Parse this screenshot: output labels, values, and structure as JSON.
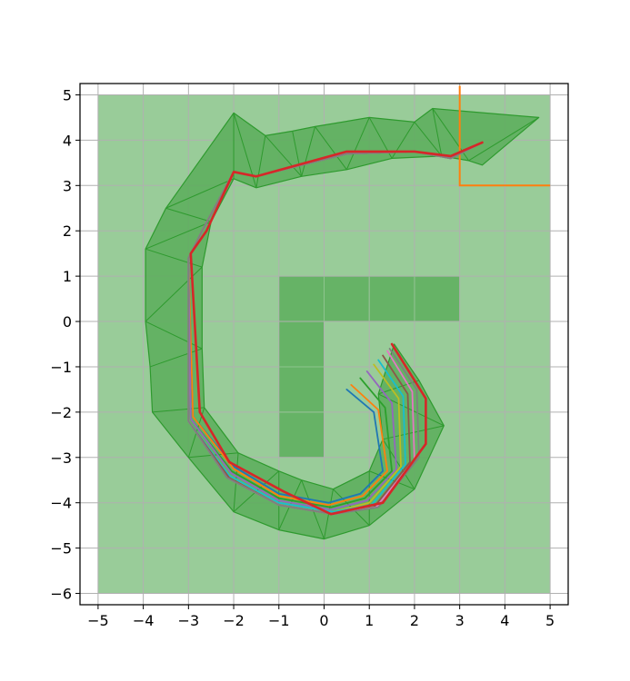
{
  "chart_data": {
    "type": "line",
    "title": "",
    "xlabel": "",
    "ylabel": "",
    "xlim": [
      -5.4,
      5.4
    ],
    "ylim": [
      -6.25,
      5.25
    ],
    "grid": true,
    "x_ticks": [
      -5,
      -4,
      -3,
      -2,
      -1,
      0,
      1,
      2,
      3,
      4,
      5
    ],
    "y_ticks": [
      5,
      4,
      3,
      2,
      1,
      0,
      -1,
      -2,
      -3,
      -4,
      -5,
      -6
    ],
    "x_tick_labels": [
      "−5",
      "−4",
      "−3",
      "−2",
      "−1",
      "0",
      "1",
      "2",
      "3",
      "4",
      "5"
    ],
    "y_tick_labels": [
      "5",
      "4",
      "3",
      "2",
      "1",
      "0",
      "−1",
      "−2",
      "−3",
      "−4",
      "−5",
      "−6"
    ],
    "colors": {
      "background_region": "#99cc99",
      "obstacle": "#66b366",
      "mesh_fill": "#5aad5a",
      "mesh_edge": "#2e9a2e",
      "goal_lines": "#ff7f0e",
      "grid": "#b0b0b0"
    },
    "background_region": {
      "x": [
        -5,
        5
      ],
      "y": [
        -6,
        5
      ]
    },
    "obstacles": [
      {
        "x": [
          -1,
          3
        ],
        "y": [
          0,
          1
        ]
      },
      {
        "x": [
          -1,
          0
        ],
        "y": [
          -3,
          0
        ]
      }
    ],
    "goal_lines": [
      [
        [
          3,
          5.2
        ],
        [
          3,
          3
        ],
        [
          5,
          3
        ]
      ]
    ],
    "mesh_polygon": [
      [
        -2.0,
        4.6
      ],
      [
        -1.3,
        4.1
      ],
      [
        -0.7,
        4.2
      ],
      [
        -0.2,
        4.3
      ],
      [
        1.0,
        4.5
      ],
      [
        2.0,
        4.4
      ],
      [
        2.4,
        4.7
      ],
      [
        4.75,
        4.5
      ],
      [
        3.5,
        3.45
      ],
      [
        3.2,
        3.55
      ],
      [
        2.6,
        3.65
      ],
      [
        1.5,
        3.6
      ],
      [
        0.5,
        3.35
      ],
      [
        -0.5,
        3.2
      ],
      [
        -1.5,
        2.95
      ],
      [
        -2.0,
        3.15
      ],
      [
        -2.5,
        2.2
      ],
      [
        -2.7,
        1.2
      ],
      [
        -2.7,
        -0.6
      ],
      [
        -2.65,
        -1.9
      ],
      [
        -1.9,
        -2.9
      ],
      [
        -1.0,
        -3.3
      ],
      [
        -0.5,
        -3.5
      ],
      [
        0.2,
        -3.7
      ],
      [
        1.0,
        -3.3
      ],
      [
        1.3,
        -2.6
      ],
      [
        1.2,
        -1.6
      ],
      [
        1.55,
        -0.5
      ],
      [
        2.1,
        -1.3
      ],
      [
        2.65,
        -2.3
      ],
      [
        2.0,
        -3.7
      ],
      [
        1.0,
        -4.5
      ],
      [
        0.0,
        -4.8
      ],
      [
        -1.0,
        -4.6
      ],
      [
        -2.0,
        -4.2
      ],
      [
        -3.0,
        -3.0
      ],
      [
        -3.8,
        -2.0
      ],
      [
        -3.85,
        -1.0
      ],
      [
        -3.95,
        0.0
      ],
      [
        -3.95,
        1.6
      ],
      [
        -3.5,
        2.5
      ]
    ],
    "mesh_edges": [
      [
        [
          -2.0,
          4.6
        ],
        [
          -2.0,
          3.15
        ]
      ],
      [
        [
          -2.0,
          4.6
        ],
        [
          -1.5,
          2.95
        ]
      ],
      [
        [
          -1.3,
          4.1
        ],
        [
          -1.5,
          2.95
        ]
      ],
      [
        [
          -1.3,
          4.1
        ],
        [
          -0.5,
          3.2
        ]
      ],
      [
        [
          -0.7,
          4.2
        ],
        [
          -0.5,
          3.2
        ]
      ],
      [
        [
          -0.2,
          4.3
        ],
        [
          -0.5,
          3.2
        ]
      ],
      [
        [
          -0.2,
          4.3
        ],
        [
          0.5,
          3.35
        ]
      ],
      [
        [
          1.0,
          4.5
        ],
        [
          0.5,
          3.35
        ]
      ],
      [
        [
          1.0,
          4.5
        ],
        [
          1.5,
          3.6
        ]
      ],
      [
        [
          2.0,
          4.4
        ],
        [
          1.5,
          3.6
        ]
      ],
      [
        [
          2.0,
          4.4
        ],
        [
          2.6,
          3.65
        ]
      ],
      [
        [
          2.4,
          4.7
        ],
        [
          2.6,
          3.65
        ]
      ],
      [
        [
          2.4,
          4.7
        ],
        [
          3.2,
          3.55
        ]
      ],
      [
        [
          4.75,
          4.5
        ],
        [
          3.2,
          3.55
        ]
      ],
      [
        [
          -3.5,
          2.5
        ],
        [
          -2.5,
          2.2
        ]
      ],
      [
        [
          -3.5,
          2.5
        ],
        [
          -2.0,
          3.15
        ]
      ],
      [
        [
          -3.95,
          1.6
        ],
        [
          -2.5,
          2.2
        ]
      ],
      [
        [
          -3.95,
          1.6
        ],
        [
          -2.7,
          1.2
        ]
      ],
      [
        [
          -3.95,
          0.0
        ],
        [
          -2.7,
          1.2
        ]
      ],
      [
        [
          -3.95,
          0.0
        ],
        [
          -2.7,
          -0.6
        ]
      ],
      [
        [
          -3.85,
          -1.0
        ],
        [
          -2.7,
          -0.6
        ]
      ],
      [
        [
          -3.8,
          -2.0
        ],
        [
          -2.65,
          -1.9
        ]
      ],
      [
        [
          -3.0,
          -3.0
        ],
        [
          -2.65,
          -1.9
        ]
      ],
      [
        [
          -3.0,
          -3.0
        ],
        [
          -1.9,
          -2.9
        ]
      ],
      [
        [
          -2.0,
          -4.2
        ],
        [
          -1.9,
          -2.9
        ]
      ],
      [
        [
          -2.0,
          -4.2
        ],
        [
          -1.0,
          -3.3
        ]
      ],
      [
        [
          -1.0,
          -4.6
        ],
        [
          -1.0,
          -3.3
        ]
      ],
      [
        [
          -1.0,
          -4.6
        ],
        [
          -0.5,
          -3.5
        ]
      ],
      [
        [
          0.0,
          -4.8
        ],
        [
          -0.5,
          -3.5
        ]
      ],
      [
        [
          0.0,
          -4.8
        ],
        [
          0.2,
          -3.7
        ]
      ],
      [
        [
          1.0,
          -4.5
        ],
        [
          0.2,
          -3.7
        ]
      ],
      [
        [
          1.0,
          -4.5
        ],
        [
          1.0,
          -3.3
        ]
      ],
      [
        [
          2.0,
          -3.7
        ],
        [
          1.0,
          -3.3
        ]
      ],
      [
        [
          2.0,
          -3.7
        ],
        [
          1.3,
          -2.6
        ]
      ],
      [
        [
          2.65,
          -2.3
        ],
        [
          1.3,
          -2.6
        ]
      ],
      [
        [
          2.65,
          -2.3
        ],
        [
          1.2,
          -1.6
        ]
      ],
      [
        [
          2.1,
          -1.3
        ],
        [
          1.2,
          -1.6
        ]
      ]
    ],
    "series": [
      {
        "color": "#1f77b4",
        "points": [
          [
            0.5,
            -1.5
          ],
          [
            1.1,
            -2.0
          ],
          [
            1.3,
            -3.3
          ],
          [
            0.8,
            -3.8
          ],
          [
            0.1,
            -4.0
          ],
          [
            -1.0,
            -3.8
          ],
          [
            -2.0,
            -3.2
          ],
          [
            -2.9,
            -2.1
          ],
          [
            -3.0,
            1.4
          ],
          [
            -2.7,
            2.0
          ],
          [
            -2.0,
            3.3
          ],
          [
            -1.5,
            3.2
          ],
          [
            0.5,
            3.7
          ],
          [
            2.0,
            3.75
          ],
          [
            2.8,
            3.6
          ],
          [
            3.5,
            3.95
          ]
        ]
      },
      {
        "color": "#ff7f0e",
        "points": [
          [
            0.6,
            -1.4
          ],
          [
            1.2,
            -1.95
          ],
          [
            1.4,
            -3.3
          ],
          [
            0.85,
            -3.85
          ],
          [
            0.1,
            -4.05
          ],
          [
            -1.0,
            -3.85
          ],
          [
            -2.0,
            -3.25
          ],
          [
            -2.9,
            -2.1
          ],
          [
            -3.0,
            1.4
          ],
          [
            -2.7,
            2.0
          ],
          [
            -2.0,
            3.3
          ],
          [
            -1.5,
            3.2
          ],
          [
            0.5,
            3.7
          ],
          [
            2.0,
            3.75
          ],
          [
            2.8,
            3.6
          ],
          [
            3.5,
            3.95
          ]
        ]
      },
      {
        "color": "#2ca02c",
        "points": [
          [
            0.8,
            -1.25
          ],
          [
            1.35,
            -1.9
          ],
          [
            1.5,
            -3.3
          ],
          [
            0.9,
            -3.9
          ],
          [
            0.15,
            -4.1
          ],
          [
            -1.0,
            -3.9
          ],
          [
            -2.05,
            -3.3
          ],
          [
            -2.95,
            -2.15
          ],
          [
            -3.0,
            1.4
          ],
          [
            -2.7,
            2.0
          ],
          [
            -2.0,
            3.3
          ],
          [
            -1.5,
            3.2
          ],
          [
            0.5,
            3.7
          ],
          [
            2.0,
            3.75
          ],
          [
            2.8,
            3.6
          ],
          [
            3.5,
            3.95
          ]
        ]
      },
      {
        "color": "#9467bd",
        "points": [
          [
            0.95,
            -1.1
          ],
          [
            1.5,
            -1.8
          ],
          [
            1.6,
            -3.25
          ],
          [
            0.95,
            -3.95
          ],
          [
            0.15,
            -4.15
          ],
          [
            -1.0,
            -3.95
          ],
          [
            -2.05,
            -3.35
          ],
          [
            -2.95,
            -2.15
          ],
          [
            -3.0,
            1.4
          ],
          [
            -2.7,
            2.0
          ],
          [
            -2.0,
            3.3
          ],
          [
            -1.5,
            3.2
          ],
          [
            0.5,
            3.7
          ],
          [
            2.0,
            3.75
          ],
          [
            2.8,
            3.6
          ],
          [
            3.5,
            3.95
          ]
        ]
      },
      {
        "color": "#bcbd22",
        "points": [
          [
            1.1,
            -0.95
          ],
          [
            1.65,
            -1.7
          ],
          [
            1.7,
            -3.2
          ],
          [
            1.0,
            -4.0
          ],
          [
            0.2,
            -4.2
          ],
          [
            -1.0,
            -4.0
          ],
          [
            -2.1,
            -3.4
          ],
          [
            -3.0,
            -2.2
          ],
          [
            -3.0,
            1.4
          ],
          [
            -2.7,
            2.0
          ],
          [
            -2.0,
            3.3
          ],
          [
            -1.5,
            3.2
          ],
          [
            0.5,
            3.7
          ],
          [
            2.0,
            3.75
          ],
          [
            2.8,
            3.6
          ],
          [
            3.5,
            3.95
          ]
        ]
      },
      {
        "color": "#17becf",
        "points": [
          [
            1.2,
            -0.85
          ],
          [
            1.75,
            -1.65
          ],
          [
            1.8,
            -3.15
          ],
          [
            1.05,
            -4.05
          ],
          [
            0.2,
            -4.2
          ],
          [
            -1.0,
            -4.0
          ],
          [
            -2.1,
            -3.4
          ],
          [
            -3.0,
            -2.2
          ],
          [
            -3.0,
            1.4
          ],
          [
            -2.7,
            2.0
          ],
          [
            -2.0,
            3.3
          ],
          [
            -1.5,
            3.2
          ],
          [
            0.5,
            3.7
          ],
          [
            2.0,
            3.75
          ],
          [
            2.8,
            3.6
          ],
          [
            3.5,
            3.95
          ]
        ]
      },
      {
        "color": "#8c564b",
        "points": [
          [
            1.3,
            -0.75
          ],
          [
            1.85,
            -1.6
          ],
          [
            1.9,
            -3.1
          ],
          [
            1.1,
            -4.1
          ],
          [
            0.2,
            -4.25
          ],
          [
            -1.0,
            -4.05
          ],
          [
            -2.1,
            -3.45
          ],
          [
            -3.0,
            -2.2
          ],
          [
            -3.0,
            1.4
          ],
          [
            -2.7,
            2.0
          ],
          [
            -2.0,
            3.3
          ],
          [
            -1.5,
            3.2
          ],
          [
            0.5,
            3.7
          ],
          [
            2.0,
            3.75
          ],
          [
            2.8,
            3.6
          ],
          [
            3.5,
            3.95
          ]
        ]
      },
      {
        "color": "#e377c2",
        "points": [
          [
            1.4,
            -0.65
          ],
          [
            1.95,
            -1.55
          ],
          [
            2.0,
            -3.05
          ],
          [
            1.15,
            -4.1
          ],
          [
            0.2,
            -4.25
          ],
          [
            -1.0,
            -4.05
          ],
          [
            -2.15,
            -3.45
          ],
          [
            -3.0,
            -2.2
          ],
          [
            -3.0,
            1.4
          ],
          [
            -2.7,
            2.0
          ],
          [
            -2.0,
            3.3
          ],
          [
            -1.5,
            3.2
          ],
          [
            0.5,
            3.7
          ],
          [
            2.0,
            3.75
          ],
          [
            2.8,
            3.6
          ],
          [
            3.5,
            3.95
          ]
        ]
      },
      {
        "color": "#7f7f7f",
        "points": [
          [
            1.45,
            -0.6
          ],
          [
            2.05,
            -1.5
          ],
          [
            2.1,
            -3.0
          ],
          [
            1.2,
            -4.1
          ],
          [
            0.2,
            -4.25
          ],
          [
            -1.0,
            -4.05
          ],
          [
            -2.15,
            -3.45
          ],
          [
            -3.0,
            -2.2
          ],
          [
            -3.0,
            1.4
          ],
          [
            -2.7,
            2.0
          ],
          [
            -2.0,
            3.3
          ],
          [
            -1.5,
            3.2
          ],
          [
            0.5,
            3.7
          ],
          [
            2.0,
            3.75
          ],
          [
            2.8,
            3.6
          ],
          [
            3.5,
            3.95
          ]
        ]
      },
      {
        "color": "#d62728",
        "points": [
          [
            1.5,
            -0.5
          ],
          [
            2.25,
            -1.7
          ],
          [
            2.25,
            -2.7
          ],
          [
            1.3,
            -4.0
          ],
          [
            0.15,
            -4.25
          ],
          [
            -0.9,
            -3.75
          ],
          [
            -2.1,
            -3.1
          ],
          [
            -2.75,
            -2.0
          ],
          [
            -2.95,
            1.5
          ],
          [
            -2.6,
            2.0
          ],
          [
            -2.0,
            3.3
          ],
          [
            -1.5,
            3.2
          ],
          [
            0.5,
            3.75
          ],
          [
            2.0,
            3.75
          ],
          [
            2.8,
            3.65
          ],
          [
            3.5,
            3.95
          ]
        ]
      }
    ]
  }
}
